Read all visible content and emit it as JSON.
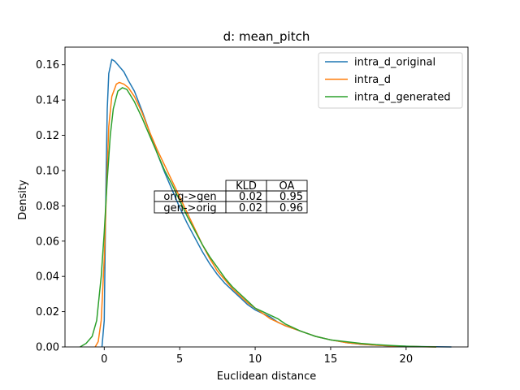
{
  "chart_data": {
    "type": "line",
    "title": "d: mean_pitch",
    "xlabel": "Euclidean distance",
    "ylabel": "Density",
    "xlim": [
      -2.6,
      24.1
    ],
    "ylim": [
      0,
      0.17
    ],
    "xticks": [
      0,
      5,
      10,
      15,
      20
    ],
    "yticks": [
      0.0,
      0.02,
      0.04,
      0.06,
      0.08,
      0.1,
      0.12,
      0.14,
      0.16
    ],
    "grid": false,
    "legend_position": "upper right",
    "series": [
      {
        "name": "intra_d_original",
        "color": "#1f77b4",
        "points": [
          [
            -0.15,
            0
          ],
          [
            0.0,
            0.015
          ],
          [
            0.05,
            0.05
          ],
          [
            0.12,
            0.095
          ],
          [
            0.2,
            0.135
          ],
          [
            0.3,
            0.155
          ],
          [
            0.5,
            0.163
          ],
          [
            0.7,
            0.162
          ],
          [
            1.0,
            0.159
          ],
          [
            1.3,
            0.156
          ],
          [
            1.6,
            0.151
          ],
          [
            2.0,
            0.145
          ],
          [
            2.5,
            0.134
          ],
          [
            3.0,
            0.122
          ],
          [
            3.5,
            0.11
          ],
          [
            4.0,
            0.099
          ],
          [
            4.5,
            0.089
          ],
          [
            5.0,
            0.079
          ],
          [
            5.5,
            0.07
          ],
          [
            6.0,
            0.062
          ],
          [
            6.5,
            0.054
          ],
          [
            7.0,
            0.047
          ],
          [
            7.5,
            0.041
          ],
          [
            8.0,
            0.036
          ],
          [
            8.5,
            0.032
          ],
          [
            9.0,
            0.028
          ],
          [
            9.5,
            0.024
          ],
          [
            10.0,
            0.021
          ],
          [
            10.5,
            0.019
          ],
          [
            11.0,
            0.017
          ],
          [
            11.5,
            0.014
          ],
          [
            12.0,
            0.012
          ],
          [
            13.0,
            0.009
          ],
          [
            14.0,
            0.006
          ],
          [
            15.0,
            0.004
          ],
          [
            16.0,
            0.0025
          ],
          [
            17.0,
            0.0015
          ],
          [
            18.0,
            0.001
          ],
          [
            19.0,
            0.0006
          ],
          [
            20.0,
            0.0004
          ],
          [
            21.0,
            0.0002
          ],
          [
            22.0,
            0.0001
          ],
          [
            23.0,
            0.0
          ]
        ]
      },
      {
        "name": "intra_d",
        "color": "#ff7f0e",
        "points": [
          [
            -0.6,
            0
          ],
          [
            -0.4,
            0.003
          ],
          [
            -0.2,
            0.015
          ],
          [
            0.0,
            0.05
          ],
          [
            0.15,
            0.09
          ],
          [
            0.3,
            0.125
          ],
          [
            0.5,
            0.142
          ],
          [
            0.8,
            0.149
          ],
          [
            1.0,
            0.15
          ],
          [
            1.3,
            0.149
          ],
          [
            1.6,
            0.147
          ],
          [
            2.0,
            0.142
          ],
          [
            2.5,
            0.133
          ],
          [
            3.0,
            0.122
          ],
          [
            3.5,
            0.112
          ],
          [
            4.0,
            0.103
          ],
          [
            4.5,
            0.094
          ],
          [
            5.0,
            0.085
          ],
          [
            5.5,
            0.076
          ],
          [
            6.0,
            0.067
          ],
          [
            6.5,
            0.058
          ],
          [
            7.0,
            0.05
          ],
          [
            7.5,
            0.043
          ],
          [
            8.0,
            0.038
          ],
          [
            8.5,
            0.033
          ],
          [
            9.0,
            0.029
          ],
          [
            9.5,
            0.025
          ],
          [
            10.0,
            0.022
          ],
          [
            10.5,
            0.019
          ],
          [
            11.0,
            0.016
          ],
          [
            11.5,
            0.014
          ],
          [
            12.0,
            0.012
          ],
          [
            13.0,
            0.009
          ],
          [
            14.0,
            0.006
          ],
          [
            15.0,
            0.004
          ],
          [
            16.0,
            0.0025
          ],
          [
            17.0,
            0.0016
          ],
          [
            18.0,
            0.001
          ],
          [
            19.0,
            0.0006
          ],
          [
            20.0,
            0.0003
          ],
          [
            21.0,
            0.0001
          ],
          [
            22.0,
            0.0
          ]
        ]
      },
      {
        "name": "intra_d_generated",
        "color": "#2ca02c",
        "points": [
          [
            -1.6,
            0
          ],
          [
            -1.2,
            0.002
          ],
          [
            -0.8,
            0.006
          ],
          [
            -0.5,
            0.015
          ],
          [
            -0.2,
            0.04
          ],
          [
            0.0,
            0.065
          ],
          [
            0.2,
            0.095
          ],
          [
            0.4,
            0.12
          ],
          [
            0.6,
            0.135
          ],
          [
            0.9,
            0.145
          ],
          [
            1.2,
            0.147
          ],
          [
            1.5,
            0.146
          ],
          [
            2.0,
            0.139
          ],
          [
            2.5,
            0.13
          ],
          [
            3.0,
            0.12
          ],
          [
            3.5,
            0.11
          ],
          [
            4.0,
            0.1
          ],
          [
            4.5,
            0.092
          ],
          [
            5.0,
            0.083
          ],
          [
            5.5,
            0.074
          ],
          [
            6.0,
            0.066
          ],
          [
            6.5,
            0.058
          ],
          [
            7.0,
            0.051
          ],
          [
            7.5,
            0.045
          ],
          [
            8.0,
            0.039
          ],
          [
            8.5,
            0.034
          ],
          [
            9.0,
            0.03
          ],
          [
            9.5,
            0.026
          ],
          [
            10.0,
            0.022
          ],
          [
            10.5,
            0.02
          ],
          [
            11.0,
            0.018
          ],
          [
            11.5,
            0.016
          ],
          [
            12.0,
            0.013
          ],
          [
            13.0,
            0.009
          ],
          [
            14.0,
            0.006
          ],
          [
            15.0,
            0.004
          ],
          [
            16.0,
            0.003
          ],
          [
            17.0,
            0.002
          ],
          [
            18.0,
            0.0013
          ],
          [
            19.0,
            0.0008
          ],
          [
            20.0,
            0.0004
          ],
          [
            21.0,
            0.0002
          ],
          [
            22.0,
            0.0
          ]
        ]
      }
    ],
    "table": {
      "col_labels": [
        "KLD",
        "OA"
      ],
      "rows": [
        {
          "label": "orig->gen",
          "values": [
            "0.02",
            "0.95"
          ]
        },
        {
          "label": "gen->orig",
          "values": [
            "0.02",
            "0.96"
          ]
        }
      ]
    }
  }
}
